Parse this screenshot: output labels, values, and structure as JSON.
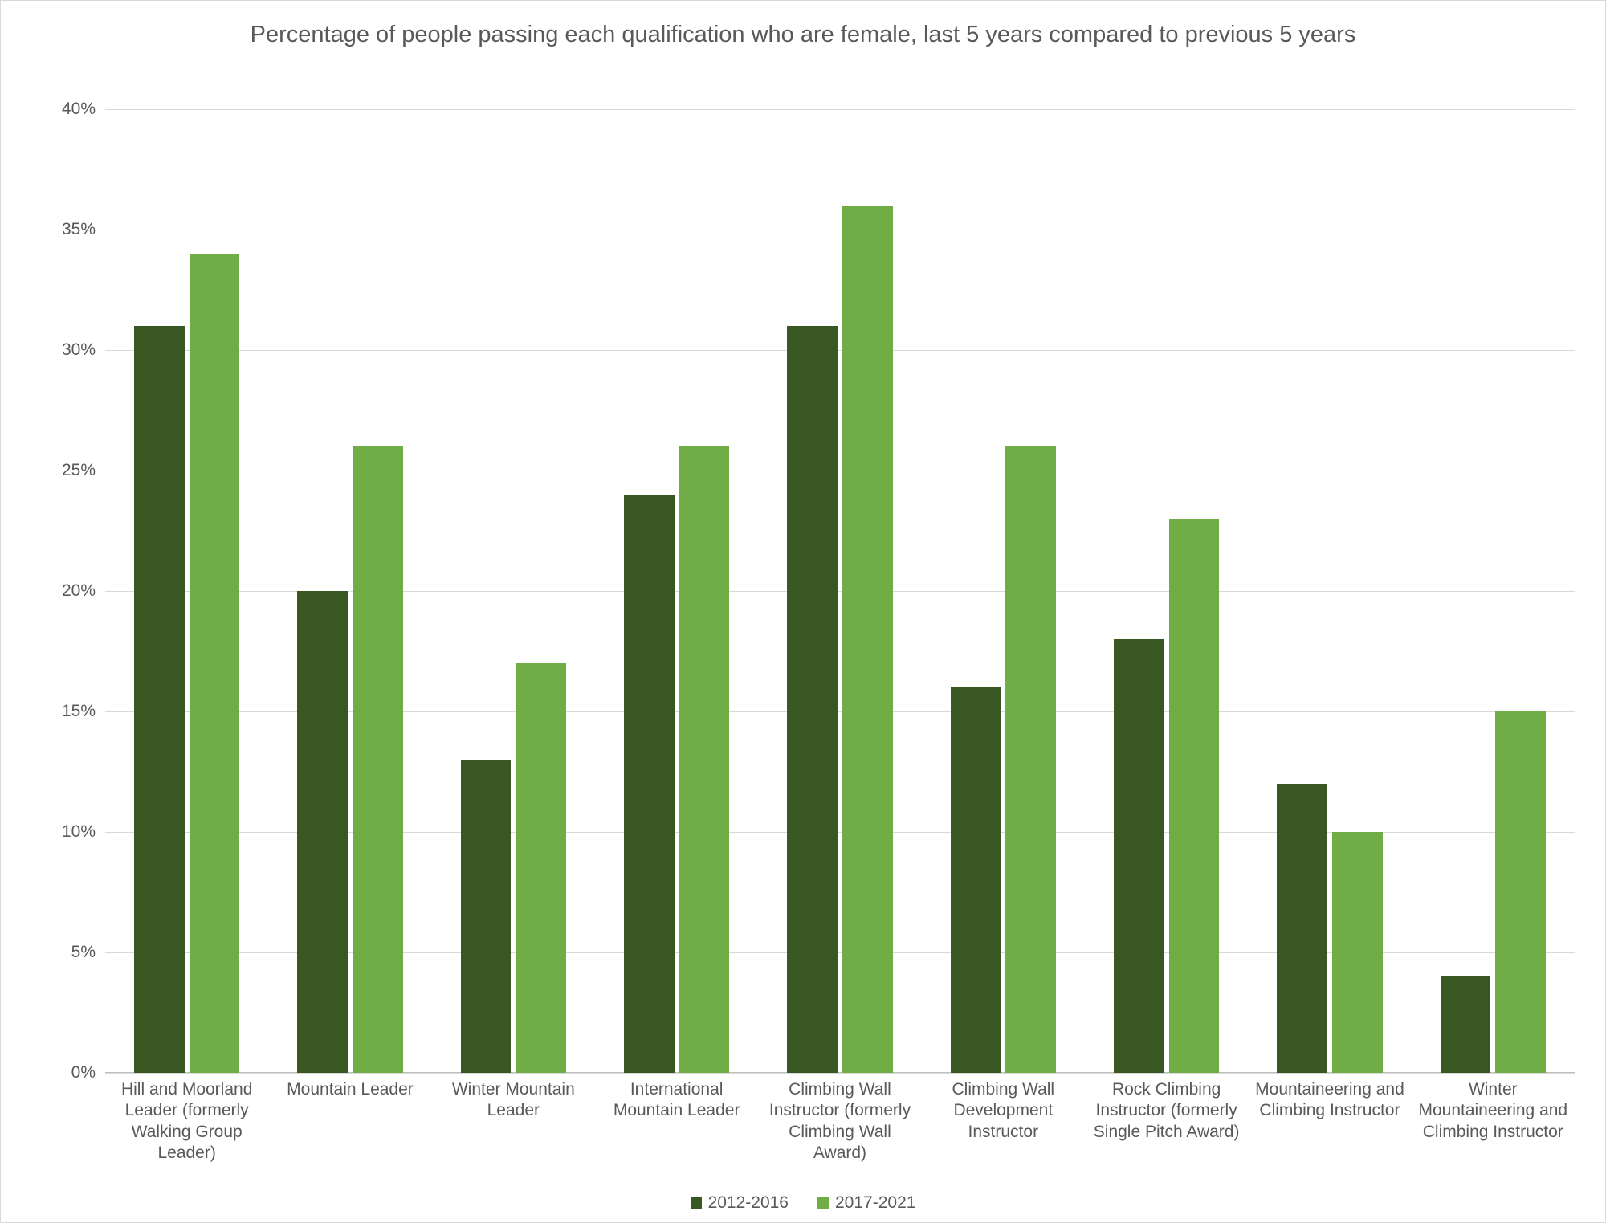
{
  "chart": {
    "type": "bar",
    "title": "Percentage of people passing each qualification who are female, last 5 years compared to previous 5 years",
    "title_fontsize": 29,
    "title_color": "#595959",
    "background_color": "#ffffff",
    "border_color": "#d9d9d9",
    "grid_color": "#d9d9d9",
    "axis_color": "#bfbfbf",
    "tick_label_color": "#595959",
    "tick_label_fontsize": 21,
    "x_label_fontsize": 21,
    "ylim": [
      0,
      40
    ],
    "ytick_step": 5,
    "ytick_suffix": "%",
    "categories": [
      "Hill and Moorland Leader (formerly Walking Group Leader)",
      "Mountain Leader",
      "Winter Mountain Leader",
      "International Mountain Leader",
      "Climbing Wall Instructor (formerly Climbing Wall Award)",
      "Climbing Wall Development Instructor",
      "Rock Climbing Instructor (formerly Single Pitch Award)",
      "Mountaineering and Climbing Instructor",
      "Winter Mountaineering and Climbing Instructor"
    ],
    "series": [
      {
        "name": "2012-2016",
        "color": "#385723",
        "values": [
          31,
          20,
          13,
          24,
          31,
          16,
          18,
          12,
          4
        ]
      },
      {
        "name": "2017-2021",
        "color": "#70ad47",
        "values": [
          34,
          26,
          17,
          26,
          36,
          26,
          23,
          10,
          15
        ]
      }
    ],
    "legend_fontsize": 21
  }
}
